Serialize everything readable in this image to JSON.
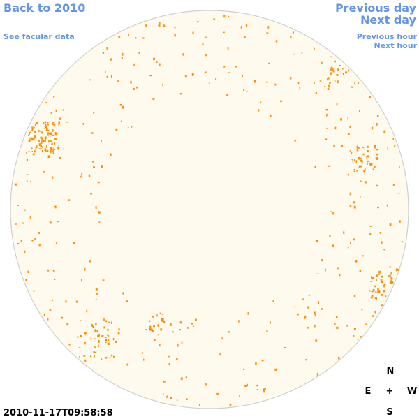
{
  "nav": {
    "back": "Back to 2010",
    "facular": "See facular data",
    "previous_day": "Previous day",
    "next_day": "Next day",
    "previous_hour": "Previous hour",
    "next_hour": "Next hour"
  },
  "timestamp": "2010-11-17T09:58:58",
  "compass": {
    "north": "N",
    "east": "E",
    "center": "+",
    "west": "W",
    "south": "S"
  }
}
